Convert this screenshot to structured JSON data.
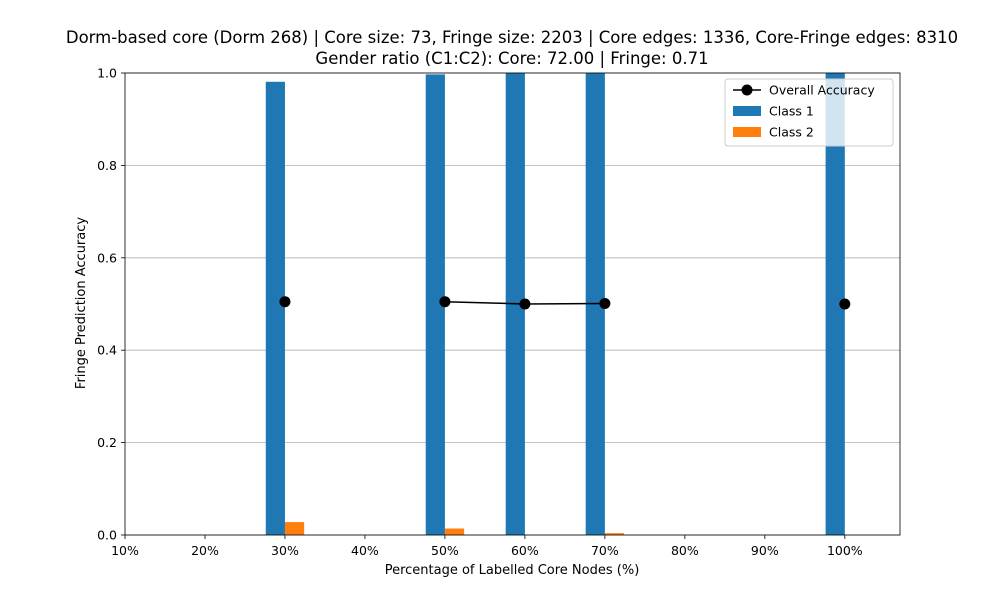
{
  "chart_data": {
    "type": "bar",
    "title_lines": [
      "Dorm-based core (Dorm 268) | Core size: 73, Fringe size: 2203 | Core edges: 1336, Core-Fringe edges: 8310",
      "Gender ratio (C1:C2): Core: 72.00 | Fringe: 0.71"
    ],
    "xlabel": "Percentage of Labelled Core Nodes (%)",
    "ylabel": "Fringe Prediction Accuracy",
    "categories": [
      "10%",
      "20%",
      "30%",
      "40%",
      "50%",
      "60%",
      "70%",
      "80%",
      "90%",
      "100%"
    ],
    "x_values": [
      10,
      20,
      30,
      40,
      50,
      60,
      70,
      80,
      90,
      100
    ],
    "ylim": [
      0,
      1.0
    ],
    "xlim": [
      10,
      106.9
    ],
    "yticks": [
      0.0,
      0.2,
      0.4,
      0.6,
      0.8,
      1.0
    ],
    "grid": "horizontal",
    "legend_position": "top-right",
    "series": [
      {
        "name": "Class 1",
        "kind": "bar",
        "color": "#1f77b4",
        "values": [
          null,
          null,
          0.981,
          null,
          0.997,
          1.0,
          1.0,
          null,
          null,
          1.0
        ]
      },
      {
        "name": "Class 2",
        "kind": "bar",
        "color": "#ff7f0e",
        "values": [
          null,
          null,
          0.028,
          null,
          0.014,
          0.0,
          0.004,
          null,
          null,
          0.0
        ]
      },
      {
        "name": "Overall Accuracy",
        "kind": "line",
        "color": "#000000",
        "values": [
          null,
          null,
          0.505,
          null,
          0.505,
          0.5,
          0.501,
          null,
          null,
          0.5
        ]
      }
    ]
  }
}
